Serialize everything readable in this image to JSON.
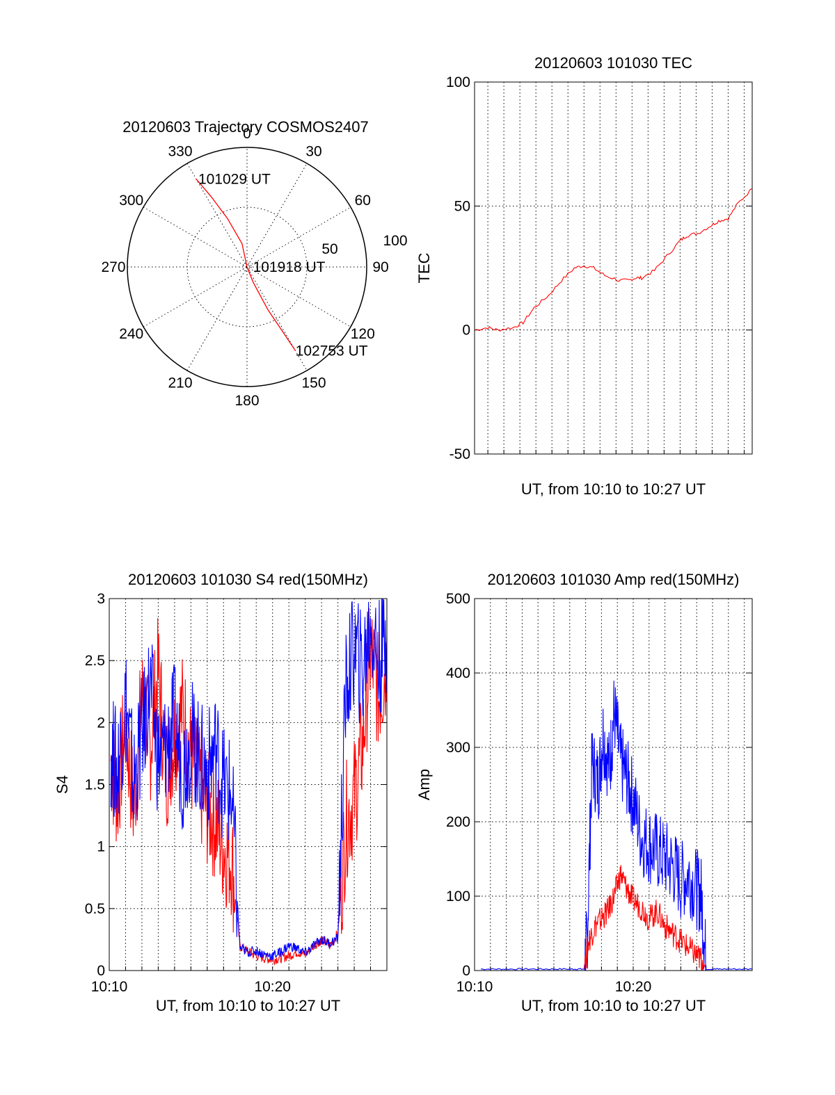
{
  "chart_data": [
    {
      "id": "trajectory",
      "type": "polar",
      "title": "20120603 Trajectory COSMOS2407",
      "angle_labels": [
        "0",
        "30",
        "60",
        "90",
        "120",
        "150",
        "180",
        "210",
        "240",
        "270",
        "300",
        "330"
      ],
      "radius_labels": [
        "50",
        "100"
      ],
      "rmax": 100,
      "grid": true,
      "series": [
        {
          "color": "#ff0000",
          "points": [
            [
              330,
              85
            ],
            [
              333,
              66
            ],
            [
              338,
              44
            ],
            [
              348,
              20
            ],
            [
              180,
              0
            ],
            [
              158,
              14
            ],
            [
              154,
              40
            ],
            [
              151,
              64
            ],
            [
              150,
              81
            ]
          ]
        }
      ],
      "annotations": [
        {
          "text": "101029 UT",
          "az": 331,
          "r": 84
        },
        {
          "text": "101918 UT",
          "az": 90,
          "r": 5
        },
        {
          "text": "102753 UT",
          "az": 150,
          "r": 81
        }
      ]
    },
    {
      "id": "tec",
      "type": "line",
      "title": "20120603 101030 TEC",
      "xlabel": "UT, from 10:10 to 10:27 UT",
      "ylabel": "TEC",
      "xlim": [
        10.17,
        27.5
      ],
      "ylim": [
        -50,
        100
      ],
      "yticks": [
        "-50",
        "0",
        "50",
        "100"
      ],
      "xticks": [],
      "grid": true,
      "series": [
        {
          "color": "#ff0000",
          "x": [
            10.17,
            11.0,
            11.6,
            12.6,
            13.2,
            13.9,
            14.8,
            15.6,
            16.4,
            17.0,
            17.6,
            18.3,
            19.2,
            19.8,
            20.2,
            20.6,
            21.4,
            22.2,
            23.0,
            23.4,
            24.1,
            24.9,
            25.4,
            26.0,
            26.6,
            27.5
          ],
          "y": [
            0,
            1,
            0,
            1,
            3,
            9,
            14,
            20,
            25,
            26,
            25,
            22,
            20,
            20,
            21,
            21,
            24,
            30,
            36,
            38,
            39,
            42,
            44,
            45,
            51,
            57
          ]
        }
      ]
    },
    {
      "id": "s4",
      "type": "line",
      "title": "20120603 101030 S4 red(150MHz)",
      "xlabel": "UT, from 10:10 to 10:27 UT",
      "ylabel": "S4",
      "xlim": [
        10,
        27
      ],
      "ylim": [
        0,
        3
      ],
      "yticks": [
        "0",
        "0.5",
        "1",
        "1.5",
        "2",
        "2.5",
        "3"
      ],
      "xticks": [
        {
          "value": 10,
          "label": "10:10"
        },
        {
          "value": 20,
          "label": "10:20"
        }
      ],
      "grid": true,
      "series": [
        {
          "color": "#ff0000",
          "x": [
            10.1,
            10.5,
            11.0,
            11.5,
            12.0,
            12.5,
            13.0,
            13.5,
            14.0,
            14.5,
            15.0,
            15.5,
            16.0,
            16.5,
            17.0,
            17.5,
            18.0,
            18.5,
            19.0,
            19.5,
            20.0,
            20.5,
            21.0,
            21.5,
            22.0,
            22.5,
            23.0,
            23.5,
            24.0,
            24.5,
            25.0,
            25.5,
            26.0,
            26.5,
            27.0
          ],
          "y": [
            1.7,
            1.4,
            2.0,
            1.3,
            2.2,
            1.8,
            2.4,
            1.6,
            1.9,
            2.1,
            1.7,
            1.5,
            1.3,
            1.2,
            1.0,
            0.9,
            0.2,
            0.15,
            0.12,
            0.1,
            0.09,
            0.1,
            0.12,
            0.15,
            0.13,
            0.2,
            0.25,
            0.2,
            0.3,
            1.2,
            1.4,
            1.8,
            2.6,
            2.2,
            2.5
          ]
        },
        {
          "color": "#0000ff",
          "x": [
            10.1,
            10.5,
            11.0,
            11.5,
            12.0,
            12.5,
            13.0,
            13.5,
            14.0,
            14.5,
            15.0,
            15.5,
            16.0,
            16.5,
            17.0,
            17.5,
            18.0,
            18.5,
            19.0,
            19.5,
            20.0,
            20.5,
            21.0,
            21.5,
            22.0,
            22.5,
            23.0,
            23.5,
            24.0,
            24.5,
            25.0,
            25.5,
            26.0,
            26.5,
            27.0
          ],
          "y": [
            1.8,
            1.6,
            2.2,
            1.5,
            1.9,
            2.3,
            1.7,
            1.8,
            2.0,
            1.6,
            1.9,
            1.7,
            1.6,
            1.8,
            1.5,
            1.4,
            0.18,
            0.15,
            0.16,
            0.13,
            0.12,
            0.15,
            0.2,
            0.18,
            0.14,
            0.2,
            0.25,
            0.22,
            0.26,
            2.3,
            2.6,
            2.4,
            2.8,
            2.5,
            2.7
          ]
        }
      ]
    },
    {
      "id": "amp",
      "type": "line",
      "title": "20120603 101030 Amp red(150MHz)",
      "xlabel": "UT, from 10:10 to 10:27 UT",
      "ylabel": "Amp",
      "xlim": [
        10,
        27.5
      ],
      "ylim": [
        0,
        500
      ],
      "yticks": [
        "0",
        "100",
        "200",
        "300",
        "400",
        "500"
      ],
      "xticks": [
        {
          "value": 10,
          "label": "10:10"
        },
        {
          "value": 20,
          "label": "10:20"
        }
      ],
      "grid": true,
      "series": [
        {
          "color": "#0000ff",
          "x": [
            10.4,
            12.0,
            14.0,
            16.0,
            16.9,
            17.1,
            17.4,
            17.8,
            18.1,
            18.5,
            18.8,
            19.2,
            19.6,
            20.0,
            20.5,
            21.0,
            21.5,
            22.0,
            22.5,
            23.0,
            23.5,
            24.0,
            24.3,
            24.6,
            25.5,
            27.5
          ],
          "y": [
            2,
            2,
            2,
            2,
            2,
            40,
            280,
            250,
            320,
            270,
            350,
            280,
            260,
            230,
            180,
            170,
            160,
            150,
            140,
            120,
            130,
            110,
            100,
            2,
            2,
            2
          ]
        },
        {
          "color": "#ff0000",
          "x": [
            16.9,
            17.2,
            17.6,
            18.0,
            18.4,
            18.8,
            19.2,
            19.6,
            20.0,
            20.5,
            21.0,
            21.5,
            22.0,
            22.5,
            23.0,
            23.5,
            24.0,
            24.3,
            24.6
          ],
          "y": [
            2,
            40,
            60,
            70,
            80,
            100,
            130,
            110,
            95,
            85,
            70,
            80,
            60,
            50,
            40,
            30,
            20,
            15,
            2
          ]
        }
      ]
    }
  ]
}
